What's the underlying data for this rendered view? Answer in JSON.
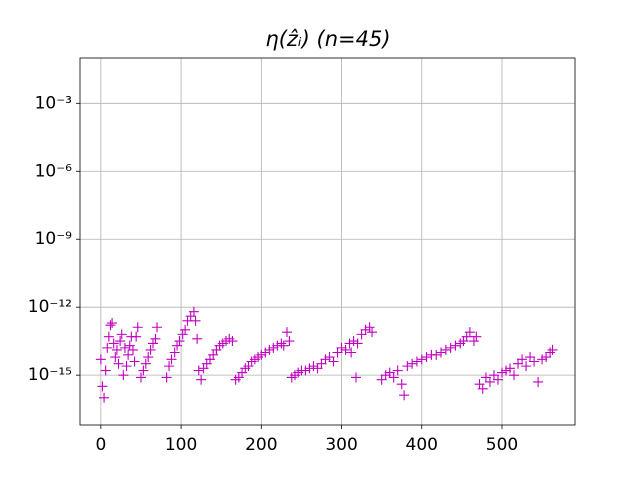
{
  "chart_data": {
    "type": "scatter",
    "title": "η(ẑᵢ) (n=45)",
    "color": "#bf00bf",
    "marker": "+",
    "log_y": true,
    "grid": true,
    "xlim": [
      -26,
      591
    ],
    "xticks": [
      0,
      100,
      200,
      300,
      400,
      500
    ],
    "ylim": [
      6.3e-18,
      0.1
    ],
    "yticks": [
      {
        "value": 1e-15,
        "label": "10⁻¹⁵"
      },
      {
        "value": 1e-12,
        "label": "10⁻¹²"
      },
      {
        "value": 1e-09,
        "label": "10⁻⁹"
      },
      {
        "value": 1e-06,
        "label": "10⁻⁶"
      },
      {
        "value": 0.001,
        "label": "10⁻³"
      }
    ],
    "x": [
      0,
      2,
      4,
      6,
      8,
      10,
      12,
      14,
      16,
      18,
      20,
      22,
      24,
      26,
      28,
      30,
      32,
      34,
      36,
      38,
      40,
      42,
      44,
      46,
      50,
      53,
      56,
      59,
      62,
      65,
      68,
      70,
      82,
      85,
      88,
      92,
      95,
      98,
      102,
      105,
      108,
      112,
      116,
      118,
      120,
      122,
      125,
      128,
      132,
      136,
      140,
      144,
      148,
      152,
      156,
      160,
      164,
      168,
      172,
      176,
      180,
      184,
      188,
      192,
      196,
      200,
      205,
      210,
      215,
      220,
      225,
      228,
      232,
      235,
      238,
      242,
      246,
      250,
      255,
      260,
      265,
      270,
      275,
      280,
      285,
      290,
      295,
      300,
      305,
      310,
      312,
      315,
      318,
      320,
      325,
      330,
      335,
      338,
      350,
      355,
      360,
      365,
      370,
      375,
      378,
      382,
      388,
      394,
      400,
      406,
      412,
      418,
      424,
      430,
      436,
      442,
      448,
      452,
      456,
      460,
      465,
      468,
      472,
      476,
      480,
      485,
      490,
      495,
      500,
      505,
      510,
      515,
      520,
      525,
      530,
      535,
      540,
      545,
      550,
      555,
      560,
      563
    ],
    "values": [
      5e-15,
      3.2e-16,
      1e-16,
      1.6e-15,
      1.6e-14,
      5e-14,
      1.6e-13,
      2e-13,
      2.5e-14,
      6.3e-15,
      1.3e-14,
      3.2e-15,
      3.2e-14,
      6.3e-14,
      1e-15,
      1.6e-14,
      2.5e-15,
      7.9e-15,
      2e-14,
      5e-14,
      1.3e-14,
      4e-15,
      5e-14,
      1.3e-13,
      7.9e-16,
      1.6e-15,
      3.2e-15,
      6.3e-15,
      1.3e-14,
      2.5e-14,
      4e-14,
      1.3e-13,
      7.9e-16,
      2.5e-15,
      5e-15,
      1e-14,
      2e-14,
      3.2e-14,
      6.3e-14,
      1e-13,
      2.5e-13,
      4e-13,
      6.3e-13,
      2.5e-13,
      4e-14,
      1.6e-15,
      6.3e-16,
      2e-15,
      3.2e-15,
      5e-15,
      7.9e-15,
      1.3e-14,
      2e-14,
      2.5e-14,
      3.2e-14,
      4e-14,
      3.2e-14,
      6.3e-16,
      7.9e-16,
      1.3e-15,
      2e-15,
      2.5e-15,
      4e-15,
      5e-15,
      6.3e-15,
      7.9e-15,
      1e-14,
      1.3e-14,
      1.6e-14,
      2e-14,
      2.5e-14,
      2e-14,
      7.9e-14,
      3.2e-14,
      7.9e-16,
      1e-15,
      1.3e-15,
      1.6e-15,
      1.6e-15,
      2e-15,
      2.5e-15,
      2e-15,
      3.2e-15,
      5e-15,
      6.3e-15,
      4e-15,
      1e-14,
      1.6e-14,
      1.3e-14,
      2.5e-14,
      1e-14,
      3.2e-14,
      7.9e-16,
      2.5e-14,
      6.3e-14,
      1e-13,
      1.3e-13,
      7.9e-14,
      6.3e-16,
      1e-15,
      1.3e-15,
      7.9e-16,
      1.6e-15,
      4e-16,
      1.3e-16,
      2.5e-15,
      3.2e-15,
      4e-15,
      5e-15,
      6.3e-15,
      7.9e-15,
      7.9e-15,
      1e-14,
      1.3e-14,
      1.6e-14,
      2e-14,
      2.5e-14,
      3.2e-14,
      5e-14,
      7.9e-14,
      3.2e-14,
      5e-14,
      4e-16,
      2.5e-16,
      7.9e-16,
      5e-16,
      1e-15,
      6.3e-16,
      1.3e-15,
      1.6e-15,
      2e-15,
      1e-15,
      3.2e-15,
      5e-15,
      2.5e-15,
      6.3e-15,
      4e-15,
      5e-16,
      5e-15,
      6.3e-15,
      1e-14,
      1.3e-14
    ]
  }
}
